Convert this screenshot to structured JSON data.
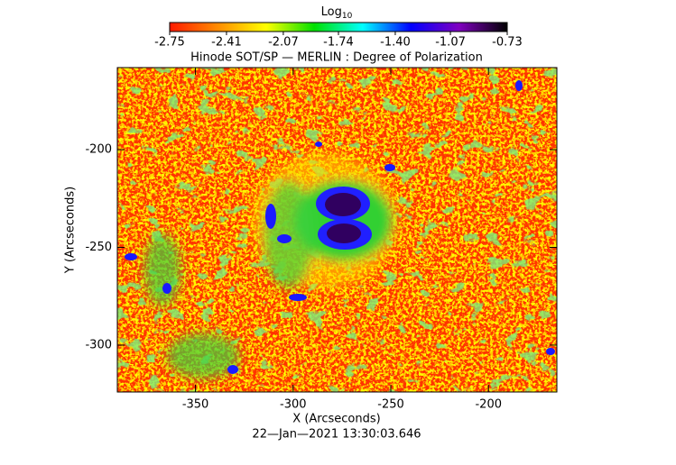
{
  "chart_data": {
    "type": "image_map",
    "title": "Hinode SOT/SP — MERLIN : Degree of Polarization",
    "xlabel": "X (Arcseconds)",
    "ylabel": "Y (Arcseconds)",
    "footer": "22—Jan—2021 13:30:03.646",
    "xlim": [
      -390,
      -165
    ],
    "xticks": [
      -350,
      -300,
      -250,
      -200
    ],
    "ylim": [
      -324,
      -158
    ],
    "yticks": [
      -300,
      -250,
      -200
    ],
    "colorbar": {
      "title": "Log",
      "title_sub": "10",
      "lim": [
        -2.75,
        -0.73
      ],
      "ticks": [
        -2.75,
        -2.41,
        -2.07,
        -1.74,
        {
          "value": -1.4,
          "label": "-1.40"
        },
        -1.07,
        -0.73
      ],
      "colors": [
        "#ff1a00",
        "#ff8c00",
        "#ffff00",
        "#00e000",
        "#00ffff",
        "#0000ff",
        "#8000c0",
        "#000000"
      ]
    }
  }
}
